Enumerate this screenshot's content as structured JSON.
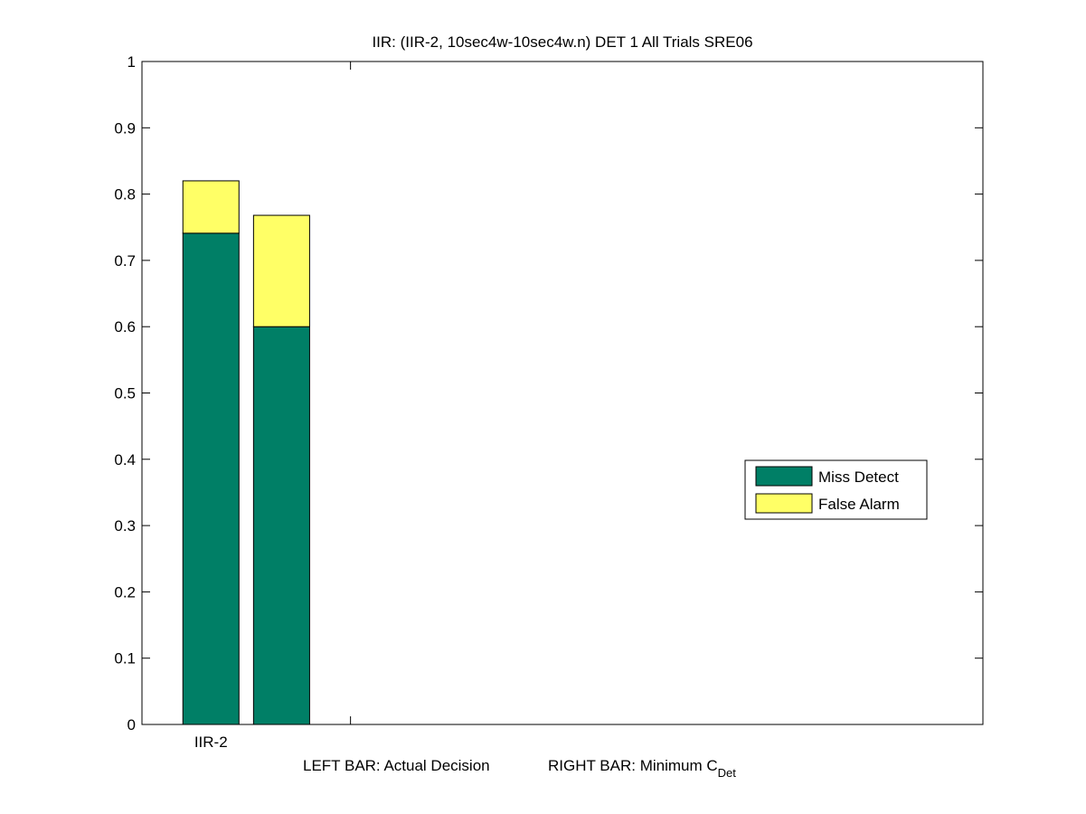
{
  "chart_data": {
    "type": "bar",
    "stacked": true,
    "title": "IIR: (IIR-2, 10sec4w-10sec4w.n) DET 1 All Trials SRE06",
    "xlabel": {
      "left_text": "LEFT BAR: Actual Decision",
      "right_text": "RIGHT BAR: Minimum C",
      "right_subscript": "Det"
    },
    "ylabel": "",
    "ylim": [
      0,
      1
    ],
    "yticks": [
      "0",
      "0.1",
      "0.2",
      "0.3",
      "0.4",
      "0.5",
      "0.6",
      "0.7",
      "0.8",
      "0.9",
      "1"
    ],
    "categories": [
      "IIR-2"
    ],
    "bars": [
      {
        "label": "Actual Decision",
        "category": "IIR-2",
        "miss_detect": 0.741,
        "false_alarm": 0.079
      },
      {
        "label": "Minimum C_Det",
        "category": "IIR-2",
        "miss_detect": 0.6,
        "false_alarm": 0.168
      }
    ],
    "series": [
      {
        "name": "Miss Detect",
        "color": "#007f66"
      },
      {
        "name": "False Alarm",
        "color": "#ffff66"
      }
    ],
    "legend_placement": "right",
    "grid": false
  }
}
